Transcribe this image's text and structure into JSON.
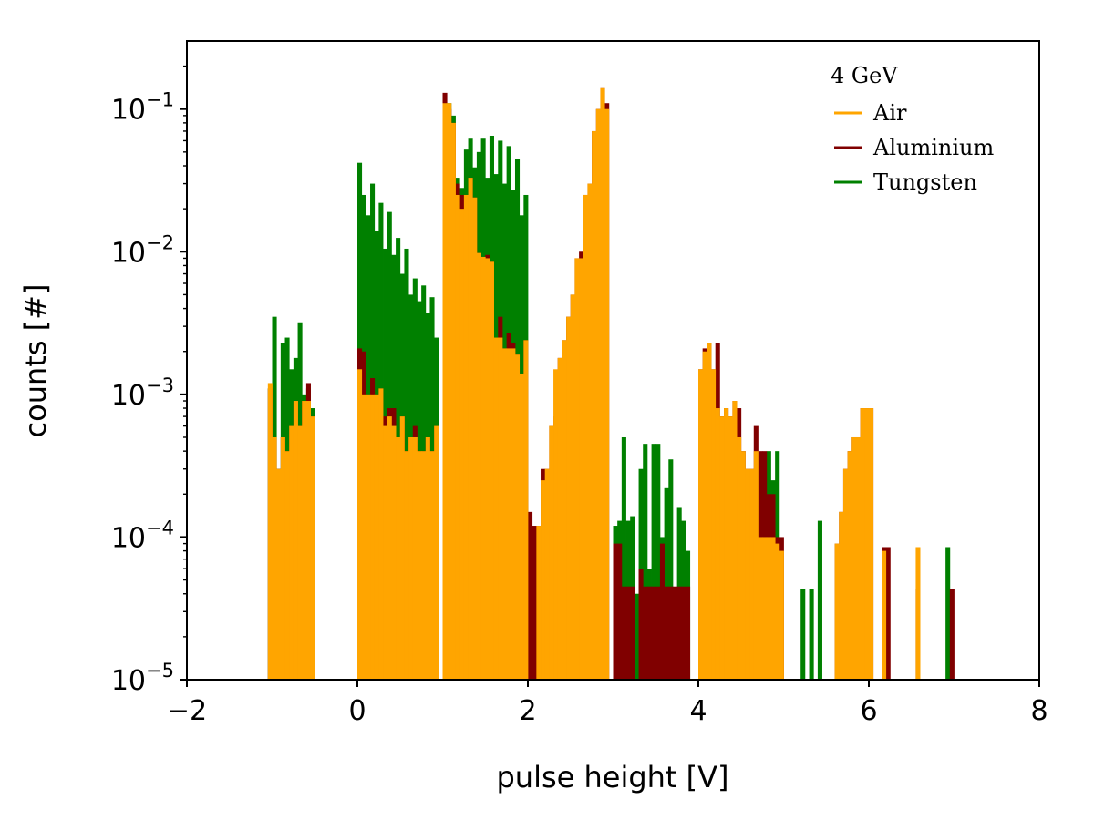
{
  "chart_data": {
    "type": "bar",
    "histogram": true,
    "xlabel": "pulse height [V]",
    "ylabel": "counts [#]",
    "xlim": [
      -2,
      8
    ],
    "ylim": [
      1e-05,
      0.3
    ],
    "yscale": "log",
    "x_ticks": [
      "−2",
      "0",
      "2",
      "4",
      "6",
      "8"
    ],
    "x_tick_values": [
      -2,
      0,
      2,
      4,
      6,
      8
    ],
    "y_ticks": [
      {
        "value": 0.1,
        "base": "10",
        "exp": "−1"
      },
      {
        "value": 0.01,
        "base": "10",
        "exp": "−2"
      },
      {
        "value": 0.001,
        "base": "10",
        "exp": "−3"
      },
      {
        "value": 0.0001,
        "base": "10",
        "exp": "−4"
      },
      {
        "value": 1e-05,
        "base": "10",
        "exp": "−5"
      }
    ],
    "legend": {
      "title": "4 GeV",
      "placement": "top-right"
    },
    "bin_width": 0.05,
    "series": [
      {
        "name": "Tungsten",
        "color": "#008000",
        "bins": [
          [
            -1.05,
            0.0011
          ],
          [
            -1.0,
            0.0035
          ],
          [
            -0.95,
            0.0003
          ],
          [
            -0.9,
            0.0023
          ],
          [
            -0.85,
            0.0025
          ],
          [
            -0.8,
            0.0015
          ],
          [
            -0.75,
            0.0018
          ],
          [
            -0.7,
            0.0032
          ],
          [
            -0.65,
            0.001
          ],
          [
            -0.6,
            0.0011
          ],
          [
            -0.55,
            0.0008
          ],
          [
            0.0,
            0.042
          ],
          [
            0.05,
            0.025
          ],
          [
            0.1,
            0.018
          ],
          [
            0.15,
            0.03
          ],
          [
            0.2,
            0.014
          ],
          [
            0.25,
            0.022
          ],
          [
            0.3,
            0.0105
          ],
          [
            0.35,
            0.019
          ],
          [
            0.4,
            0.0095
          ],
          [
            0.45,
            0.0125
          ],
          [
            0.5,
            0.007
          ],
          [
            0.55,
            0.0105
          ],
          [
            0.6,
            0.005
          ],
          [
            0.65,
            0.0065
          ],
          [
            0.7,
            0.0045
          ],
          [
            0.75,
            0.0058
          ],
          [
            0.8,
            0.0037
          ],
          [
            0.85,
            0.0048
          ],
          [
            0.9,
            0.0025
          ],
          [
            1.0,
            0.09
          ],
          [
            1.05,
            0.11
          ],
          [
            1.1,
            0.09
          ],
          [
            1.15,
            0.033
          ],
          [
            1.2,
            0.028
          ],
          [
            1.25,
            0.052
          ],
          [
            1.3,
            0.062
          ],
          [
            1.35,
            0.039
          ],
          [
            1.4,
            0.05
          ],
          [
            1.45,
            0.062
          ],
          [
            1.5,
            0.033
          ],
          [
            1.55,
            0.065
          ],
          [
            1.6,
            0.035
          ],
          [
            1.65,
            0.06
          ],
          [
            1.7,
            0.03
          ],
          [
            1.75,
            0.055
          ],
          [
            1.8,
            0.027
          ],
          [
            1.85,
            0.045
          ],
          [
            1.9,
            0.018
          ],
          [
            1.95,
            0.025
          ],
          [
            3.0,
            0.00012
          ],
          [
            3.05,
            0.00013
          ],
          [
            3.1,
            0.0005
          ],
          [
            3.15,
            0.00013
          ],
          [
            3.2,
            0.00014
          ],
          [
            3.25,
            4e-05
          ],
          [
            3.3,
            0.0003
          ],
          [
            3.35,
            0.00045
          ],
          [
            3.4,
            6e-05
          ],
          [
            3.45,
            0.00045
          ],
          [
            3.5,
            0.00045
          ],
          [
            3.55,
            0.0001
          ],
          [
            3.6,
            0.00022
          ],
          [
            3.65,
            0.00035
          ],
          [
            3.7,
            4e-05
          ],
          [
            3.75,
            0.00016
          ],
          [
            3.8,
            0.00013
          ],
          [
            3.85,
            8e-05
          ],
          [
            4.8,
            0.0004
          ],
          [
            4.85,
            0.00025
          ],
          [
            4.9,
            0.0004
          ],
          [
            5.2,
            4.3e-05
          ],
          [
            5.3,
            4.3e-05
          ],
          [
            5.4,
            0.00013
          ],
          [
            6.9,
            8.5e-05
          ]
        ]
      },
      {
        "name": "Aluminium",
        "color": "#800000",
        "bins": [
          [
            -1.05,
            0.0011
          ],
          [
            -1.0,
            0.0005
          ],
          [
            -0.95,
            0.0003
          ],
          [
            -0.9,
            0.0005
          ],
          [
            -0.85,
            0.0004
          ],
          [
            -0.8,
            0.0006
          ],
          [
            -0.75,
            0.0009
          ],
          [
            -0.7,
            0.0006
          ],
          [
            -0.65,
            0.0009
          ],
          [
            -0.6,
            0.0012
          ],
          [
            -0.55,
            0.0007
          ],
          [
            0.0,
            0.0021
          ],
          [
            0.05,
            0.002
          ],
          [
            0.1,
            0.001
          ],
          [
            0.15,
            0.0013
          ],
          [
            0.2,
            0.001
          ],
          [
            0.25,
            0.0011
          ],
          [
            0.3,
            0.0007
          ],
          [
            0.35,
            0.0008
          ],
          [
            0.4,
            0.0008
          ],
          [
            0.45,
            0.0005
          ],
          [
            0.5,
            0.0007
          ],
          [
            0.55,
            0.0004
          ],
          [
            0.6,
            0.0005
          ],
          [
            0.65,
            0.0006
          ],
          [
            0.7,
            0.0004
          ],
          [
            0.75,
            0.0004
          ],
          [
            0.8,
            0.0005
          ],
          [
            0.85,
            0.0004
          ],
          [
            0.9,
            0.0006
          ],
          [
            1.0,
            0.13
          ],
          [
            1.05,
            0.1
          ],
          [
            1.1,
            0.08
          ],
          [
            1.15,
            0.03
          ],
          [
            1.2,
            0.025
          ],
          [
            1.25,
            0.025
          ],
          [
            1.3,
            0.033
          ],
          [
            1.35,
            0.024
          ],
          [
            1.4,
            0.0098
          ],
          [
            1.45,
            0.0092
          ],
          [
            1.5,
            0.0095
          ],
          [
            1.55,
            0.0085
          ],
          [
            1.6,
            0.0025
          ],
          [
            1.65,
            0.0035
          ],
          [
            1.7,
            0.0021
          ],
          [
            1.75,
            0.0027
          ],
          [
            1.8,
            0.0023
          ],
          [
            1.85,
            0.0019
          ],
          [
            1.9,
            0.0014
          ],
          [
            1.95,
            0.0024
          ],
          [
            2.0,
            0.00015
          ],
          [
            2.05,
            0.00012
          ],
          [
            2.1,
            0.00012
          ],
          [
            2.15,
            0.0003
          ],
          [
            2.2,
            0.0003
          ],
          [
            2.25,
            0.0006
          ],
          [
            2.3,
            0.0007
          ],
          [
            2.35,
            0.0018
          ],
          [
            2.4,
            0.0024
          ],
          [
            2.45,
            0.0035
          ],
          [
            2.5,
            0.005
          ],
          [
            2.55,
            0.009
          ],
          [
            2.6,
            0.01
          ],
          [
            2.65,
            0.025
          ],
          [
            2.7,
            0.03
          ],
          [
            2.75,
            0.07
          ],
          [
            2.8,
            0.1
          ],
          [
            2.85,
            0.14
          ],
          [
            2.9,
            0.11
          ],
          [
            3.0,
            9e-05
          ],
          [
            3.05,
            9e-05
          ],
          [
            3.1,
            4.5e-05
          ],
          [
            3.15,
            4.5e-05
          ],
          [
            3.2,
            4.5e-05
          ],
          [
            3.3,
            6e-05
          ],
          [
            3.35,
            4.5e-05
          ],
          [
            3.4,
            4.5e-05
          ],
          [
            3.45,
            4.5e-05
          ],
          [
            3.5,
            4.5e-05
          ],
          [
            3.55,
            9e-05
          ],
          [
            3.6,
            4.5e-05
          ],
          [
            3.65,
            4.5e-05
          ],
          [
            3.7,
            4.5e-05
          ],
          [
            3.75,
            4.5e-05
          ],
          [
            3.8,
            4.5e-05
          ],
          [
            3.85,
            4.5e-05
          ],
          [
            4.0,
            0.0015
          ],
          [
            4.05,
            0.0021
          ],
          [
            4.1,
            0.0023
          ],
          [
            4.15,
            0.0015
          ],
          [
            4.2,
            0.0023
          ],
          [
            4.25,
            0.0007
          ],
          [
            4.3,
            0.0008
          ],
          [
            4.35,
            0.0007
          ],
          [
            4.4,
            0.0009
          ],
          [
            4.45,
            0.0008
          ],
          [
            4.5,
            0.0004
          ],
          [
            4.55,
            0.0003
          ],
          [
            4.6,
            0.0003
          ],
          [
            4.65,
            0.0006
          ],
          [
            4.7,
            0.0004
          ],
          [
            4.75,
            0.0004
          ],
          [
            4.8,
            0.0002
          ],
          [
            4.85,
            0.0002
          ],
          [
            4.9,
            0.0001
          ],
          [
            4.95,
            0.0001
          ],
          [
            5.6,
            9e-05
          ],
          [
            5.65,
            0.00015
          ],
          [
            5.7,
            0.0003
          ],
          [
            5.75,
            0.0004
          ],
          [
            5.8,
            0.0005
          ],
          [
            5.85,
            0.0005
          ],
          [
            5.9,
            0.0008
          ],
          [
            5.95,
            0.0008
          ],
          [
            6.0,
            0.0008
          ],
          [
            6.15,
            8.5e-05
          ],
          [
            6.2,
            8.5e-05
          ],
          [
            6.55,
            4.3e-05
          ],
          [
            6.95,
            4.3e-05
          ]
        ]
      },
      {
        "name": "Air",
        "color": "#ffa500",
        "bins": [
          [
            -1.05,
            0.0012
          ],
          [
            -1.0,
            0.0005
          ],
          [
            -0.95,
            0.0003
          ],
          [
            -0.9,
            0.0005
          ],
          [
            -0.85,
            0.0004
          ],
          [
            -0.8,
            0.0006
          ],
          [
            -0.75,
            0.0009
          ],
          [
            -0.7,
            0.0006
          ],
          [
            -0.65,
            0.0009
          ],
          [
            -0.6,
            0.0009
          ],
          [
            -0.55,
            0.0007
          ],
          [
            0.0,
            0.0015
          ],
          [
            0.05,
            0.001
          ],
          [
            0.1,
            0.001
          ],
          [
            0.15,
            0.001
          ],
          [
            0.2,
            0.001
          ],
          [
            0.25,
            0.0011
          ],
          [
            0.3,
            0.0006
          ],
          [
            0.35,
            0.0007
          ],
          [
            0.4,
            0.0006
          ],
          [
            0.45,
            0.0005
          ],
          [
            0.5,
            0.0007
          ],
          [
            0.55,
            0.0004
          ],
          [
            0.6,
            0.0005
          ],
          [
            0.65,
            0.0005
          ],
          [
            0.7,
            0.0004
          ],
          [
            0.75,
            0.0004
          ],
          [
            0.8,
            0.0005
          ],
          [
            0.85,
            0.0004
          ],
          [
            0.9,
            0.0006
          ],
          [
            1.0,
            0.11
          ],
          [
            1.05,
            0.11
          ],
          [
            1.1,
            0.08
          ],
          [
            1.15,
            0.025
          ],
          [
            1.2,
            0.02
          ],
          [
            1.25,
            0.025
          ],
          [
            1.3,
            0.033
          ],
          [
            1.35,
            0.024
          ],
          [
            1.4,
            0.0098
          ],
          [
            1.45,
            0.0092
          ],
          [
            1.5,
            0.009
          ],
          [
            1.55,
            0.0085
          ],
          [
            1.6,
            0.0025
          ],
          [
            1.65,
            0.0025
          ],
          [
            1.7,
            0.0021
          ],
          [
            1.75,
            0.0021
          ],
          [
            1.8,
            0.0021
          ],
          [
            1.85,
            0.0019
          ],
          [
            1.9,
            0.0014
          ],
          [
            1.95,
            0.0024
          ],
          [
            2.1,
            0.00012
          ],
          [
            2.15,
            0.00025
          ],
          [
            2.2,
            0.0003
          ],
          [
            2.25,
            0.0006
          ],
          [
            2.3,
            0.0015
          ],
          [
            2.35,
            0.0018
          ],
          [
            2.4,
            0.0024
          ],
          [
            2.45,
            0.0035
          ],
          [
            2.5,
            0.005
          ],
          [
            2.55,
            0.009
          ],
          [
            2.6,
            0.009
          ],
          [
            2.65,
            0.025
          ],
          [
            2.7,
            0.03
          ],
          [
            2.75,
            0.07
          ],
          [
            2.8,
            0.1
          ],
          [
            2.85,
            0.14
          ],
          [
            2.9,
            0.1
          ],
          [
            4.0,
            0.0015
          ],
          [
            4.05,
            0.002
          ],
          [
            4.1,
            0.0023
          ],
          [
            4.15,
            0.0015
          ],
          [
            4.2,
            0.0008
          ],
          [
            4.25,
            0.0007
          ],
          [
            4.3,
            0.0008
          ],
          [
            4.35,
            0.0007
          ],
          [
            4.4,
            0.0009
          ],
          [
            4.45,
            0.0005
          ],
          [
            4.5,
            0.0004
          ],
          [
            4.55,
            0.0003
          ],
          [
            4.6,
            0.0003
          ],
          [
            4.65,
            0.0004
          ],
          [
            4.7,
            0.0001
          ],
          [
            4.75,
            0.0001
          ],
          [
            4.8,
            0.0001
          ],
          [
            4.85,
            0.0001
          ],
          [
            4.9,
            9e-05
          ],
          [
            4.95,
            8e-05
          ],
          [
            5.6,
            9e-05
          ],
          [
            5.65,
            0.00015
          ],
          [
            5.7,
            0.0003
          ],
          [
            5.75,
            0.0004
          ],
          [
            5.8,
            0.0005
          ],
          [
            5.85,
            0.0005
          ],
          [
            5.9,
            0.0008
          ],
          [
            5.95,
            0.0008
          ],
          [
            6.0,
            0.0008
          ],
          [
            6.15,
            8e-05
          ],
          [
            6.55,
            8.5e-05
          ]
        ]
      }
    ],
    "legend_order": [
      "Air",
      "Aluminium",
      "Tungsten"
    ]
  }
}
